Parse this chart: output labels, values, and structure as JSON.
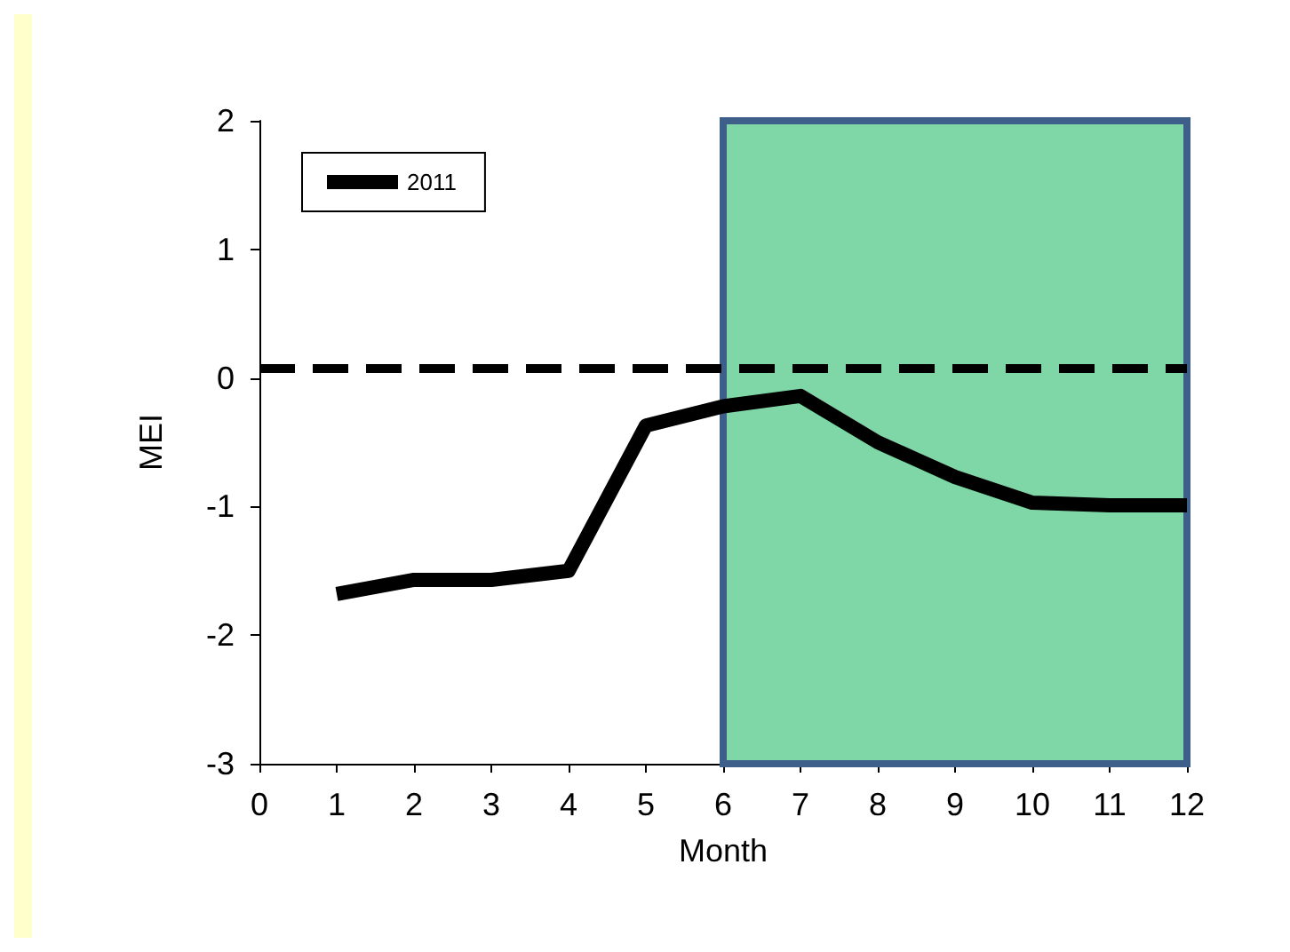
{
  "chart_data": {
    "type": "line",
    "xlabel": "Month",
    "ylabel": "MEI",
    "x": [
      1,
      2,
      3,
      4,
      5,
      6,
      7,
      8,
      9,
      10,
      11,
      12
    ],
    "series": [
      {
        "name": "2011",
        "color": "#000000",
        "values": [
          -1.68,
          -1.57,
          -1.57,
          -1.5,
          -0.37,
          -0.22,
          -0.14,
          -0.5,
          -0.77,
          -0.97,
          -0.99,
          -0.99
        ]
      }
    ],
    "xlim": [
      0,
      12
    ],
    "xticks": [
      0,
      1,
      2,
      3,
      4,
      5,
      6,
      7,
      8,
      9,
      10,
      11,
      12
    ],
    "ylim": [
      -3,
      2
    ],
    "yticks": [
      -3,
      -2,
      -1,
      0,
      1,
      2
    ],
    "ref_lines": [
      {
        "axis": "y",
        "value": 0.08,
        "color": "#000000",
        "line_style": "dashed"
      }
    ],
    "bands": [
      {
        "axis": "x",
        "from": 6,
        "to": 12,
        "color": "#00b050"
      }
    ],
    "legend": "top left",
    "grid": false,
    "marker": "none",
    "line_style": "solid"
  }
}
